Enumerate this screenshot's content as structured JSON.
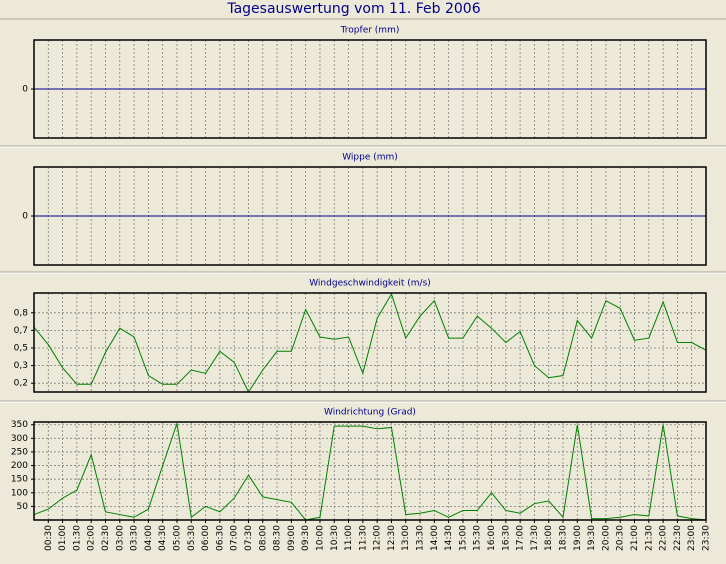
{
  "title": "Tagesauswertung vom 11. Feb 2006",
  "chart_data": [
    {
      "type": "line",
      "title": "Tropfer (mm)",
      "ylim": [
        -1,
        1
      ],
      "yticks": [
        0
      ],
      "zero_line": true,
      "zero_line_color": "#00008b",
      "grid": true
    },
    {
      "type": "line",
      "title": "Wippe (mm)",
      "ylim": [
        -1,
        1
      ],
      "yticks": [
        0
      ],
      "zero_line": true,
      "zero_line_color": "#00008b",
      "grid": true
    },
    {
      "type": "line",
      "title": "Windgeschwindigkeit (m/s)",
      "ylim": [
        0.1,
        1.0
      ],
      "yticks": [
        {
          "value": 0.82,
          "label": "0,8"
        },
        {
          "value": 0.66,
          "label": "0,7"
        },
        {
          "value": 0.5,
          "label": "0,5"
        },
        {
          "value": 0.34,
          "label": "0,3"
        },
        {
          "value": 0.18,
          "label": "0,2"
        }
      ],
      "grid": true,
      "series": [
        {
          "color": "#008000",
          "values": [
            0.69,
            0.53,
            0.32,
            0.17,
            0.17,
            0.46,
            0.68,
            0.6,
            0.25,
            0.17,
            0.17,
            0.3,
            0.27,
            0.47,
            0.37,
            0.1,
            0.3,
            0.47,
            0.47,
            0.85,
            0.6,
            0.58,
            0.6,
            0.27,
            0.77,
            0.99,
            0.59,
            0.79,
            0.93,
            0.59,
            0.59,
            0.79,
            0.68,
            0.55,
            0.65,
            0.34,
            0.23,
            0.25,
            0.75,
            0.59,
            0.93,
            0.86,
            0.57,
            0.59,
            0.92,
            0.55,
            0.55,
            0.48
          ]
        }
      ]
    },
    {
      "type": "line",
      "title": "Windrichtung (Grad)",
      "ylim": [
        0,
        360
      ],
      "yticks": [
        350,
        300,
        250,
        200,
        150,
        100,
        50
      ],
      "grid": true,
      "categories": [
        null,
        "00:30",
        "01:00",
        "01:30",
        "02:00",
        "02:30",
        "03:00",
        "03:30",
        "04:00",
        "04:30",
        "05:00",
        "05:30",
        "06:00",
        "06:30",
        "07:00",
        "07:30",
        "08:00",
        "08:30",
        "09:00",
        "09:30",
        "10:00",
        "10:30",
        "11:00",
        "11:30",
        "12:00",
        "12:30",
        "13:00",
        "13:30",
        "14:00",
        "14:30",
        "15:00",
        "15:30",
        "16:00",
        "16:30",
        "17:00",
        "17:30",
        "18:00",
        "18:30",
        "19:00",
        "19:30",
        "20:00",
        "20:30",
        "21:00",
        "21:30",
        "22:00",
        "22:30",
        "23:00",
        "23:30"
      ],
      "series": [
        {
          "color": "#008000",
          "values": [
            20,
            40,
            80,
            110,
            240,
            30,
            20,
            10,
            40,
            200,
            355,
            10,
            50,
            30,
            80,
            165,
            85,
            75,
            65,
            0,
            10,
            345,
            345,
            345,
            335,
            340,
            20,
            25,
            35,
            10,
            35,
            35,
            100,
            35,
            25,
            60,
            70,
            10,
            350,
            5,
            5,
            10,
            20,
            15,
            350,
            15,
            5,
            0
          ]
        }
      ]
    }
  ]
}
